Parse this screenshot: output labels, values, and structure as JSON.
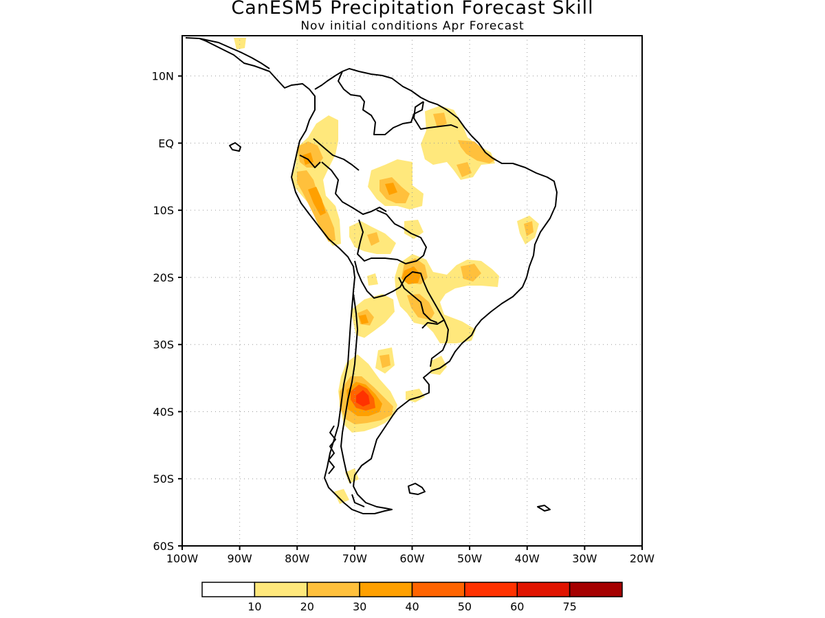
{
  "title": "CanESM5 Precipitation Forecast Skill",
  "subtitle": "Nov initial conditions  Apr Forecast",
  "map": {
    "lon_range": [
      -100,
      -20
    ],
    "lat_range": [
      -60,
      16
    ],
    "grid": "dotted"
  },
  "axes": {
    "x_ticks": [
      "100W",
      "90W",
      "80W",
      "70W",
      "60W",
      "50W",
      "40W",
      "30W",
      "20W"
    ],
    "y_ticks": [
      "10N",
      "EQ",
      "10S",
      "20S",
      "30S",
      "40S",
      "50S",
      "60S"
    ]
  },
  "colorbar": {
    "labels": [
      "10",
      "20",
      "30",
      "40",
      "50",
      "60",
      "75"
    ],
    "colors": [
      "#ffffff",
      "#ffe87c",
      "#ffc03c",
      "#ffa000",
      "#ff6400",
      "#ff3200",
      "#e01400",
      "#a50000"
    ]
  },
  "shading_colors": {
    "level_1": "#ffe87c",
    "level_2": "#ffc03c",
    "level_3": "#ffa000",
    "level_4": "#ff6400",
    "level_5": "#ff3200"
  }
}
